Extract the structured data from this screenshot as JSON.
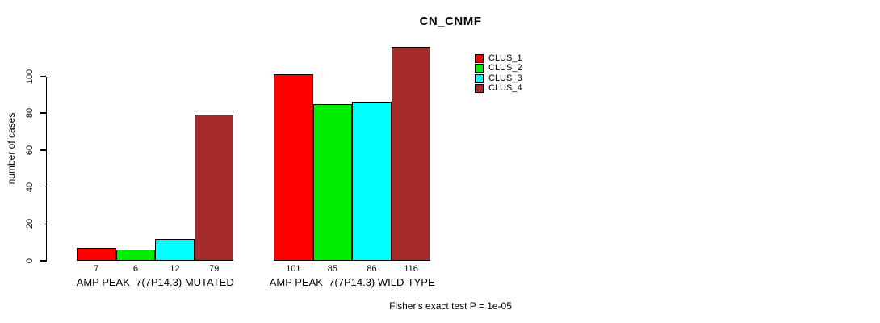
{
  "chart_data": {
    "type": "bar",
    "title": "CN_CNMF",
    "ylabel": "number of cases",
    "ylim": [
      0,
      116
    ],
    "yticks": [
      0,
      20,
      40,
      60,
      80,
      100
    ],
    "grid": false,
    "legend_position": "top-right",
    "categories": [
      "AMP PEAK  7(7P14.3) MUTATED",
      "AMP PEAK  7(7P14.3) WILD-TYPE"
    ],
    "series": [
      {
        "name": "CLUS_1",
        "color": "#ff0000",
        "values": [
          7,
          101
        ]
      },
      {
        "name": "CLUS_2",
        "color": "#00ee00",
        "values": [
          6,
          85
        ]
      },
      {
        "name": "CLUS_3",
        "color": "#00ffff",
        "values": [
          12,
          86
        ]
      },
      {
        "name": "CLUS_4",
        "color": "#a52a2a",
        "values": [
          79,
          116
        ]
      }
    ],
    "bar_value_labels": [
      [
        "7",
        "6",
        "12",
        "79"
      ],
      [
        "101",
        "85",
        "86",
        "116"
      ]
    ],
    "annotation": "Fisher's exact test P = 1e-05",
    "colors": {
      "background": "#ffffff",
      "axis": "#000000",
      "text": "#000000"
    }
  }
}
